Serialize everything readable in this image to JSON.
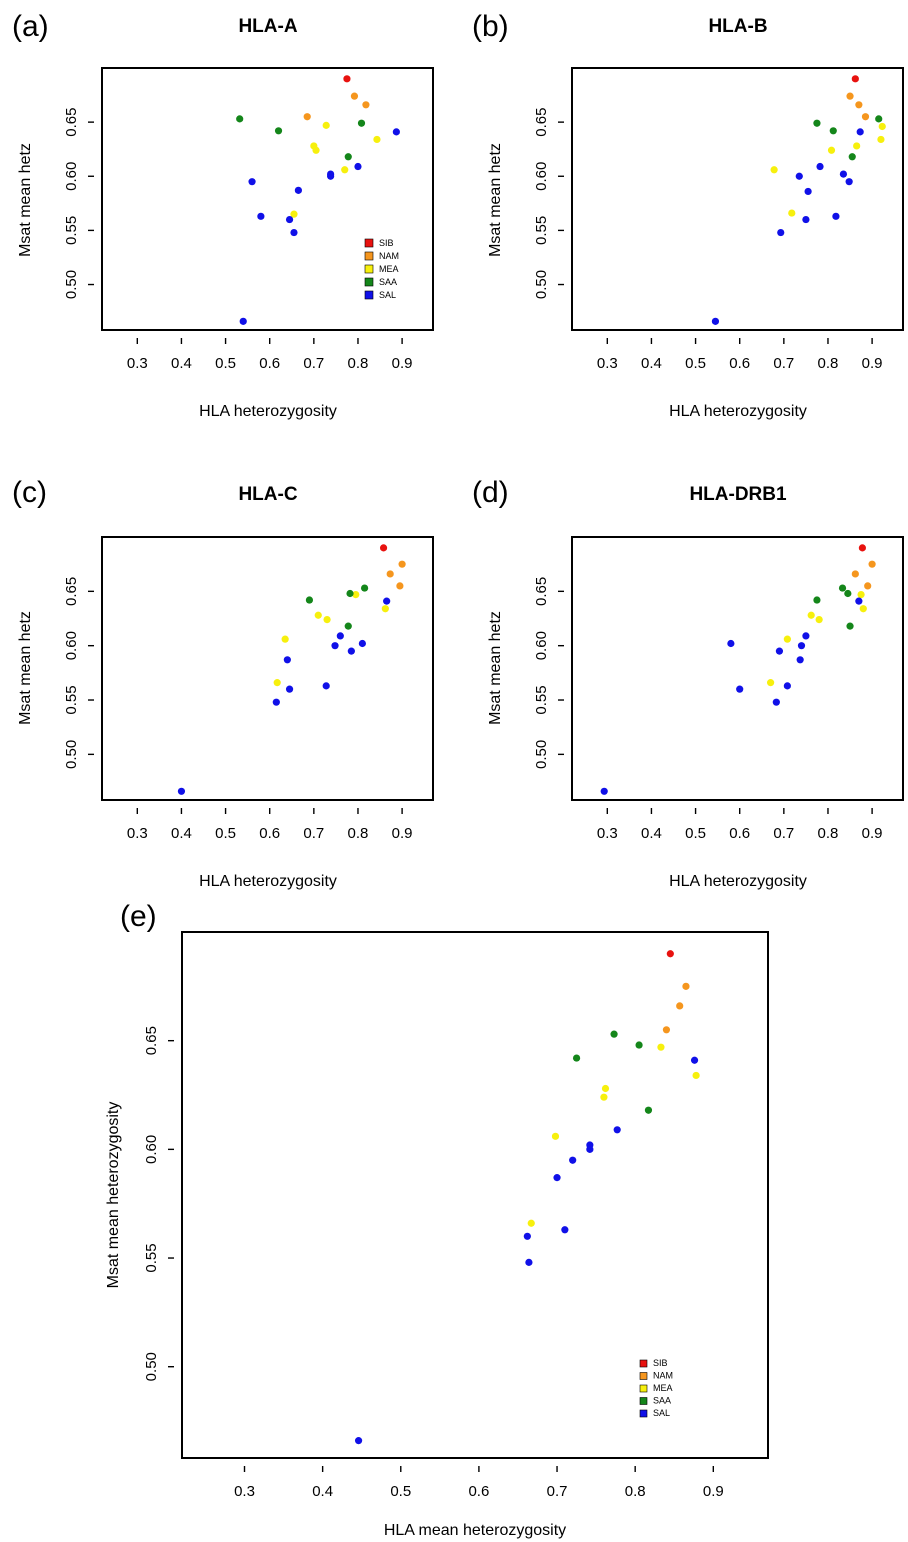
{
  "figure": {
    "panel_labels": [
      "(a)",
      "(b)",
      "(c)",
      "(d)",
      "(e)"
    ]
  },
  "legend_colors": {
    "SIB": "#e8120f",
    "NAM": "#f5961e",
    "MEA": "#f7f00d",
    "SAA": "#14861a",
    "SAL": "#1010e8"
  },
  "chart_data": [
    {
      "panel": "(a)",
      "type": "scatter",
      "title": "HLA-A",
      "xlabel": "HLA heterozygosity",
      "ylabel": "Msat mean hetz",
      "xlim": [
        0.22,
        0.97
      ],
      "ylim": [
        0.458,
        0.7
      ],
      "xticks": [
        "0.3",
        "0.4",
        "0.5",
        "0.6",
        "0.7",
        "0.8",
        "0.9"
      ],
      "yticks": [
        "0.50",
        "0.55",
        "0.60",
        "0.65"
      ],
      "grid": false,
      "legend": {
        "position": "right",
        "entries": [
          "SIB",
          "NAM",
          "MEA",
          "SAA",
          "SAL"
        ]
      },
      "series": [
        {
          "name": "SIB",
          "points": [
            [
              0.775,
              0.69
            ]
          ]
        },
        {
          "name": "NAM",
          "points": [
            [
              0.685,
              0.655
            ],
            [
              0.792,
              0.674
            ],
            [
              0.818,
              0.666
            ]
          ]
        },
        {
          "name": "MEA",
          "points": [
            [
              0.728,
              0.647
            ],
            [
              0.7,
              0.628
            ],
            [
              0.705,
              0.624
            ],
            [
              0.77,
              0.606
            ],
            [
              0.843,
              0.634
            ],
            [
              0.655,
              0.565
            ]
          ]
        },
        {
          "name": "SAA",
          "points": [
            [
              0.532,
              0.653
            ],
            [
              0.62,
              0.642
            ],
            [
              0.808,
              0.649
            ],
            [
              0.778,
              0.618
            ]
          ]
        },
        {
          "name": "SAL",
          "points": [
            [
              0.887,
              0.641
            ],
            [
              0.8,
              0.609
            ],
            [
              0.738,
              0.602
            ],
            [
              0.738,
              0.6
            ],
            [
              0.665,
              0.587
            ],
            [
              0.56,
              0.595
            ],
            [
              0.58,
              0.563
            ],
            [
              0.645,
              0.56
            ],
            [
              0.655,
              0.548
            ],
            [
              0.54,
              0.466
            ]
          ]
        }
      ]
    },
    {
      "panel": "(b)",
      "type": "scatter",
      "title": "HLA-B",
      "xlabel": "HLA heterozygosity",
      "ylabel": "Msat mean hetz",
      "xlim": [
        0.22,
        0.97
      ],
      "ylim": [
        0.458,
        0.7
      ],
      "xticks": [
        "0.3",
        "0.4",
        "0.5",
        "0.6",
        "0.7",
        "0.8",
        "0.9"
      ],
      "yticks": [
        "0.50",
        "0.55",
        "0.60",
        "0.65"
      ],
      "grid": false,
      "series": [
        {
          "name": "SIB",
          "points": [
            [
              0.862,
              0.69
            ]
          ]
        },
        {
          "name": "NAM",
          "points": [
            [
              0.85,
              0.674
            ],
            [
              0.87,
              0.666
            ],
            [
              0.885,
              0.655
            ]
          ]
        },
        {
          "name": "MEA",
          "points": [
            [
              0.678,
              0.606
            ],
            [
              0.718,
              0.566
            ],
            [
              0.808,
              0.624
            ],
            [
              0.865,
              0.628
            ],
            [
              0.92,
              0.634
            ],
            [
              0.923,
              0.646
            ]
          ]
        },
        {
          "name": "SAA",
          "points": [
            [
              0.915,
              0.653
            ],
            [
              0.775,
              0.649
            ],
            [
              0.812,
              0.642
            ],
            [
              0.855,
              0.618
            ]
          ]
        },
        {
          "name": "SAL",
          "points": [
            [
              0.873,
              0.641
            ],
            [
              0.782,
              0.609
            ],
            [
              0.735,
              0.6
            ],
            [
              0.835,
              0.602
            ],
            [
              0.848,
              0.595
            ],
            [
              0.755,
              0.586
            ],
            [
              0.75,
              0.56
            ],
            [
              0.818,
              0.563
            ],
            [
              0.693,
              0.548
            ],
            [
              0.545,
              0.466
            ]
          ]
        }
      ]
    },
    {
      "panel": "(c)",
      "type": "scatter",
      "title": "HLA-C",
      "xlabel": "HLA heterozygosity",
      "ylabel": "Msat mean hetz",
      "xlim": [
        0.22,
        0.97
      ],
      "ylim": [
        0.458,
        0.7
      ],
      "xticks": [
        "0.3",
        "0.4",
        "0.5",
        "0.6",
        "0.7",
        "0.8",
        "0.9"
      ],
      "yticks": [
        "0.50",
        "0.55",
        "0.60",
        "0.65"
      ],
      "grid": false,
      "series": [
        {
          "name": "SIB",
          "points": [
            [
              0.858,
              0.69
            ]
          ]
        },
        {
          "name": "NAM",
          "points": [
            [
              0.9,
              0.675
            ],
            [
              0.873,
              0.666
            ],
            [
              0.895,
              0.655
            ]
          ]
        },
        {
          "name": "MEA",
          "points": [
            [
              0.795,
              0.647
            ],
            [
              0.71,
              0.628
            ],
            [
              0.73,
              0.624
            ],
            [
              0.635,
              0.606
            ],
            [
              0.862,
              0.634
            ],
            [
              0.617,
              0.566
            ]
          ]
        },
        {
          "name": "SAA",
          "points": [
            [
              0.69,
              0.642
            ],
            [
              0.815,
              0.653
            ],
            [
              0.782,
              0.648
            ],
            [
              0.778,
              0.618
            ]
          ]
        },
        {
          "name": "SAL",
          "points": [
            [
              0.865,
              0.641
            ],
            [
              0.76,
              0.609
            ],
            [
              0.748,
              0.6
            ],
            [
              0.81,
              0.602
            ],
            [
              0.785,
              0.595
            ],
            [
              0.64,
              0.587
            ],
            [
              0.645,
              0.56
            ],
            [
              0.728,
              0.563
            ],
            [
              0.615,
              0.548
            ],
            [
              0.4,
              0.466
            ]
          ]
        }
      ]
    },
    {
      "panel": "(d)",
      "type": "scatter",
      "title": "HLA-DRB1",
      "xlabel": "HLA heterozygosity",
      "ylabel": "Msat mean hetz",
      "xlim": [
        0.22,
        0.97
      ],
      "ylim": [
        0.458,
        0.7
      ],
      "xticks": [
        "0.3",
        "0.4",
        "0.5",
        "0.6",
        "0.7",
        "0.8",
        "0.9"
      ],
      "yticks": [
        "0.50",
        "0.55",
        "0.60",
        "0.65"
      ],
      "grid": false,
      "series": [
        {
          "name": "SIB",
          "points": [
            [
              0.878,
              0.69
            ]
          ]
        },
        {
          "name": "NAM",
          "points": [
            [
              0.9,
              0.675
            ],
            [
              0.862,
              0.666
            ],
            [
              0.89,
              0.655
            ]
          ]
        },
        {
          "name": "MEA",
          "points": [
            [
              0.875,
              0.647
            ],
            [
              0.762,
              0.628
            ],
            [
              0.78,
              0.624
            ],
            [
              0.708,
              0.606
            ],
            [
              0.88,
              0.634
            ],
            [
              0.67,
              0.566
            ]
          ]
        },
        {
          "name": "SAA",
          "points": [
            [
              0.833,
              0.653
            ],
            [
              0.845,
              0.648
            ],
            [
              0.775,
              0.642
            ],
            [
              0.85,
              0.618
            ]
          ]
        },
        {
          "name": "SAL",
          "points": [
            [
              0.87,
              0.641
            ],
            [
              0.75,
              0.609
            ],
            [
              0.74,
              0.6
            ],
            [
              0.58,
              0.602
            ],
            [
              0.69,
              0.595
            ],
            [
              0.737,
              0.587
            ],
            [
              0.6,
              0.56
            ],
            [
              0.708,
              0.563
            ],
            [
              0.683,
              0.548
            ],
            [
              0.293,
              0.466
            ]
          ]
        }
      ]
    },
    {
      "panel": "(e)",
      "type": "scatter",
      "title": "",
      "xlabel": "HLA mean heterozygosity",
      "ylabel": "Msat mean heterozygosity",
      "xlim": [
        0.22,
        0.97
      ],
      "ylim": [
        0.458,
        0.7
      ],
      "xticks": [
        "0.3",
        "0.4",
        "0.5",
        "0.6",
        "0.7",
        "0.8",
        "0.9"
      ],
      "yticks": [
        "0.50",
        "0.55",
        "0.60",
        "0.65"
      ],
      "grid": false,
      "legend": {
        "position": "bottom-right",
        "entries": [
          "SIB",
          "NAM",
          "MEA",
          "SAA",
          "SAL"
        ]
      },
      "series": [
        {
          "name": "SIB",
          "points": [
            [
              0.845,
              0.69
            ]
          ]
        },
        {
          "name": "NAM",
          "points": [
            [
              0.865,
              0.675
            ],
            [
              0.857,
              0.666
            ],
            [
              0.84,
              0.655
            ]
          ]
        },
        {
          "name": "MEA",
          "points": [
            [
              0.833,
              0.647
            ],
            [
              0.762,
              0.628
            ],
            [
              0.76,
              0.624
            ],
            [
              0.698,
              0.606
            ],
            [
              0.878,
              0.634
            ],
            [
              0.667,
              0.566
            ]
          ]
        },
        {
          "name": "SAA",
          "points": [
            [
              0.773,
              0.653
            ],
            [
              0.805,
              0.648
            ],
            [
              0.725,
              0.642
            ],
            [
              0.817,
              0.618
            ]
          ]
        },
        {
          "name": "SAL",
          "points": [
            [
              0.876,
              0.641
            ],
            [
              0.777,
              0.609
            ],
            [
              0.742,
              0.6
            ],
            [
              0.742,
              0.602
            ],
            [
              0.72,
              0.595
            ],
            [
              0.7,
              0.587
            ],
            [
              0.71,
              0.563
            ],
            [
              0.662,
              0.56
            ],
            [
              0.664,
              0.548
            ],
            [
              0.446,
              0.466
            ]
          ]
        }
      ]
    }
  ]
}
